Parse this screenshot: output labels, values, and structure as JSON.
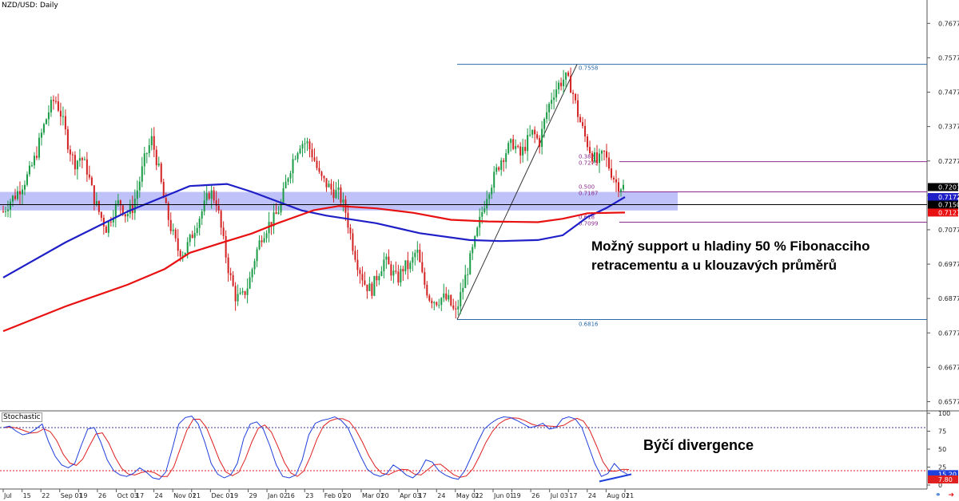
{
  "symbol_label": "NZD/USD: Daily",
  "indicator_label": "Stochastic",
  "annotations": {
    "support_line1": "Možný support u hladiny 50 % Fibonacciho",
    "support_line2": "retracementu a u klouzavých průměrů",
    "divergence": "Býčí divergence"
  },
  "colors": {
    "ma_fast": "#1f1fc8",
    "ma_slow": "#e81010",
    "fib_line": "#2a6aa8",
    "fib_level": "#8b2a8b",
    "support_zone": "#a9adf5",
    "bull_candle": "#1a9b46",
    "bear_candle": "#d32020",
    "stoch_k": "#1f3fdc",
    "stoch_d": "#e02020",
    "stoch_level": "#e02020"
  },
  "icons": [
    "chain-link-icon",
    "arrow-right-icon"
  ],
  "chart_data": [
    {
      "type": "candlestick",
      "title": "NZD/USD: Daily",
      "y_ticks": [
        "0.7677",
        "0.7577",
        "0.7477",
        "0.7377",
        "0.7277",
        "0.7177",
        "0.7077",
        "0.6977",
        "0.6877",
        "0.6777",
        "0.6677",
        "0.6577"
      ],
      "ylim": [
        0.6555,
        0.7745
      ],
      "x_tick_labels": [
        "Jul",
        "15",
        "22",
        "Sep 01",
        "19",
        "26",
        "Oct 03",
        "17",
        "24",
        "Nov 01",
        "21",
        "Dec 01",
        "19",
        "29",
        "Jan 02",
        "16",
        "23",
        "Feb 01",
        "20",
        "Mar 01",
        "20",
        "Apr 03",
        "17",
        "24",
        "May 01",
        "22",
        "Jun 01",
        "19",
        "26",
        "Jul 03",
        "17",
        "24",
        "Aug 01",
        "21"
      ],
      "price_labels": [
        {
          "label": "0.7201",
          "value": 0.7201,
          "color": "#000000"
        },
        {
          "label": "0.7172",
          "value": 0.7172,
          "color": "#1f1fc8"
        },
        {
          "label": "0.7150",
          "value": 0.715,
          "color": "#000000"
        },
        {
          "label": "0.7127",
          "value": 0.7127,
          "color": "#e81010"
        }
      ],
      "price_path": [
        0.713,
        0.716,
        0.718,
        0.721,
        0.724,
        0.729,
        0.736,
        0.742,
        0.746,
        0.741,
        0.733,
        0.727,
        0.729,
        0.725,
        0.717,
        0.712,
        0.708,
        0.713,
        0.716,
        0.712,
        0.714,
        0.721,
        0.729,
        0.734,
        0.726,
        0.715,
        0.708,
        0.702,
        0.701,
        0.705,
        0.71,
        0.714,
        0.719,
        0.716,
        0.705,
        0.695,
        0.688,
        0.688,
        0.692,
        0.7,
        0.706,
        0.709,
        0.711,
        0.715,
        0.723,
        0.729,
        0.733,
        0.733,
        0.729,
        0.723,
        0.721,
        0.719,
        0.718,
        0.713,
        0.704,
        0.697,
        0.692,
        0.69,
        0.695,
        0.699,
        0.696,
        0.693,
        0.697,
        0.697,
        0.702,
        0.693,
        0.688,
        0.687,
        0.688,
        0.687,
        0.683,
        0.69,
        0.697,
        0.704,
        0.712,
        0.719,
        0.723,
        0.728,
        0.731,
        0.733,
        0.729,
        0.733,
        0.736,
        0.733,
        0.741,
        0.747,
        0.75,
        0.752,
        0.749,
        0.741,
        0.735,
        0.73,
        0.727,
        0.73,
        0.725,
        0.721,
        0.7201
      ],
      "series": [
        {
          "name": "MA fast",
          "color": "#1f1fc8",
          "points": [
            [
              0,
              0.6938
            ],
            [
              0.1,
              0.704
            ],
            [
              0.2,
              0.713
            ],
            [
              0.3,
              0.7204
            ],
            [
              0.36,
              0.721
            ],
            [
              0.4,
              0.7187
            ],
            [
              0.48,
              0.7133
            ],
            [
              0.52,
              0.7118
            ],
            [
              0.6,
              0.7096
            ],
            [
              0.67,
              0.7067
            ],
            [
              0.75,
              0.7047
            ],
            [
              0.8,
              0.7044
            ],
            [
              0.86,
              0.7047
            ],
            [
              0.9,
              0.7061
            ],
            [
              0.94,
              0.7114
            ],
            [
              0.97,
              0.714
            ],
            [
              1.0,
              0.7172
            ]
          ]
        },
        {
          "name": "MA slow",
          "color": "#e81010",
          "points": [
            [
              0,
              0.6782
            ],
            [
              0.1,
              0.6854
            ],
            [
              0.2,
              0.6917
            ],
            [
              0.26,
              0.6963
            ],
            [
              0.3,
              0.701
            ],
            [
              0.36,
              0.7044
            ],
            [
              0.4,
              0.7066
            ],
            [
              0.44,
              0.7095
            ],
            [
              0.5,
              0.7134
            ],
            [
              0.54,
              0.7146
            ],
            [
              0.6,
              0.7139
            ],
            [
              0.66,
              0.7126
            ],
            [
              0.72,
              0.7106
            ],
            [
              0.78,
              0.7101
            ],
            [
              0.86,
              0.7099
            ],
            [
              0.9,
              0.7109
            ],
            [
              0.94,
              0.7125
            ],
            [
              1.0,
              0.7127
            ]
          ]
        }
      ],
      "support_zone": [
        0.7133,
        0.7187
      ],
      "horizontal_line": 0.715,
      "fibonacci": {
        "high": 0.7558,
        "low": 0.6816,
        "levels": [
          {
            "ratio": "0.382",
            "value": "0.7275",
            "y": 0.7275
          },
          {
            "ratio": "0.500",
            "value": "0.7187",
            "y": 0.7187
          },
          {
            "ratio": "0.618",
            "value": "0.7099",
            "y": 0.7099
          }
        ],
        "high_label": "0.7558",
        "low_label": "0.6816"
      }
    },
    {
      "type": "line",
      "title": "Stochastic",
      "y_ticks": [
        "100",
        "75",
        "50",
        "25",
        "0"
      ],
      "ylim": [
        0,
        100
      ],
      "levels": [
        80,
        20
      ],
      "value_labels": [
        {
          "label": "15.20",
          "value": 15.2,
          "color": "#1f3fdc"
        },
        {
          "label": "7.80",
          "value": 7.8,
          "color": "#e02020"
        }
      ],
      "k_path": [
        80,
        82,
        75,
        70,
        72,
        78,
        85,
        60,
        40,
        28,
        24,
        30,
        55,
        78,
        80,
        60,
        35,
        20,
        14,
        12,
        16,
        24,
        18,
        10,
        8,
        18,
        50,
        85,
        94,
        96,
        85,
        60,
        30,
        15,
        10,
        14,
        30,
        65,
        85,
        88,
        78,
        55,
        28,
        12,
        10,
        14,
        35,
        70,
        86,
        90,
        92,
        95,
        90,
        80,
        60,
        40,
        22,
        15,
        12,
        16,
        28,
        22,
        14,
        10,
        18,
        35,
        32,
        20,
        14,
        10,
        8,
        20,
        40,
        60,
        78,
        86,
        92,
        95,
        94,
        90,
        85,
        80,
        82,
        86,
        78,
        80,
        92,
        95,
        92,
        80,
        55,
        30,
        12,
        16,
        30,
        20,
        15
      ]
    }
  ]
}
